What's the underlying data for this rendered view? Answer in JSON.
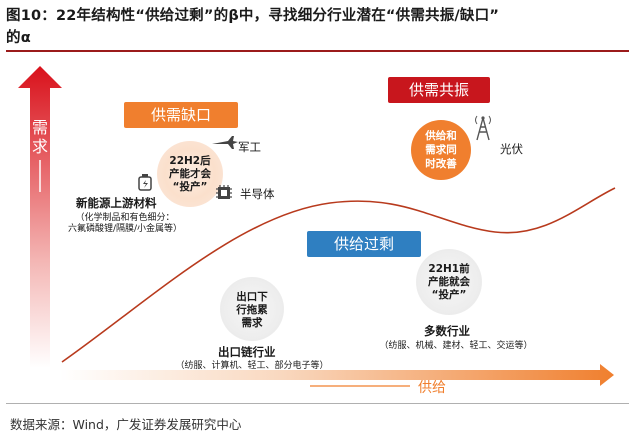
{
  "title": {
    "line1": "图10：22年结构性“供给过剩”的β中，寻找细分行业潜在“供需共振/缺口”",
    "line2": "的α"
  },
  "axes": {
    "y_label": "需求",
    "x_label": "供给"
  },
  "labels": {
    "shortage": "供需缺口",
    "resonance": "供需共振",
    "oversupply": "供给过剩"
  },
  "nodes": {
    "shortage_circle": "22H2后\n产能才会\n“投产”",
    "military": "军工",
    "semiconductor": "半导体",
    "new_energy": "新能源上游材料",
    "new_energy_note1": "（化学制品和有色细分：",
    "new_energy_note2": "六氟磷酸锂/隔膜/小金属等）",
    "resonance_circle": "供给和\n需求同\n时改善",
    "photovoltaic": "光伏",
    "export_circle": "出口下\n行拖累\n需求",
    "export_chain": "出口链行业",
    "export_note": "（纺服、计算机、轻工、部分电子等）",
    "capacity_circle": "22H1前\n产能就会\n“投产”",
    "many_industries": "多数行业",
    "many_note": "（纺服、机械、建材、轻工、交运等）"
  },
  "colors": {
    "red": "#c8161d",
    "orange": "#f07f2e",
    "blue": "#2f7fc1",
    "dark_red": "#a3171c",
    "rule": "#9b1b1b"
  },
  "source": "数据来源：Wind，广发证券发展研究中心"
}
